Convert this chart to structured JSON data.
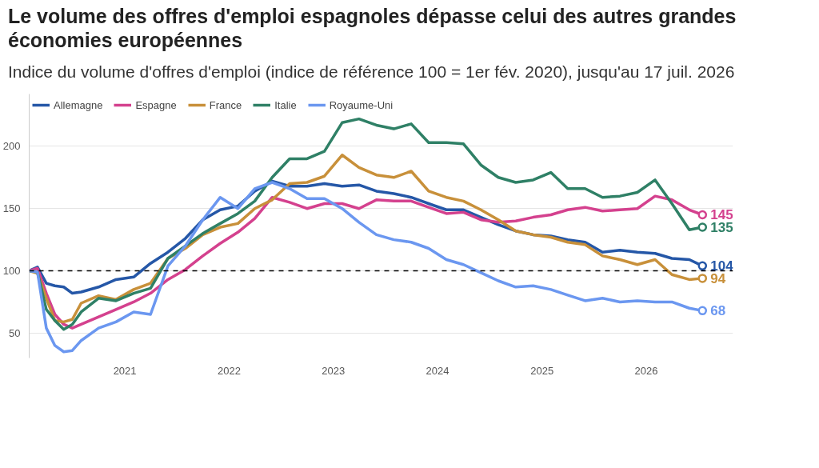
{
  "chart_data": {
    "type": "line",
    "title": "Le volume des offres d'emploi espagnoles dépasse celui des autres grandes économies européennes",
    "subtitle": "Indice du volume d'offres d'emploi (indice de référence 100 = 1er fév. 2020), jusqu'au 17 juil. 2026",
    "x": [
      "2020-02",
      "2020-03",
      "2020-04",
      "2020-05",
      "2020-06",
      "2020-07",
      "2020-08",
      "2020-10",
      "2020-12",
      "2021-02",
      "2021-04",
      "2021-06",
      "2021-08",
      "2021-10",
      "2021-12",
      "2022-02",
      "2022-04",
      "2022-06",
      "2022-08",
      "2022-10",
      "2022-12",
      "2023-02",
      "2023-04",
      "2023-06",
      "2023-08",
      "2023-10",
      "2023-12",
      "2024-02",
      "2024-04",
      "2024-06",
      "2024-08",
      "2024-10",
      "2024-12",
      "2025-02",
      "2025-04",
      "2025-06",
      "2025-08",
      "2025-10",
      "2025-12",
      "2026-02",
      "2026-04",
      "2026-06",
      "2026-07-17"
    ],
    "series": [
      {
        "name": "Allemagne",
        "color": "#2557a7",
        "values": [
          100,
          103,
          90,
          88,
          87,
          82,
          83,
          87,
          93,
          95,
          106,
          115,
          126,
          141,
          149,
          152,
          164,
          172,
          168,
          168,
          170,
          168,
          169,
          164,
          162,
          159,
          154,
          149,
          149,
          143,
          137,
          132,
          129,
          128,
          125,
          123,
          115,
          116.5,
          115,
          114,
          110,
          109,
          104
        ],
        "value_labels": [
          null,
          null,
          null,
          null,
          null,
          null,
          null,
          null,
          null,
          null,
          null,
          null,
          null,
          null,
          null,
          null,
          null,
          null,
          null,
          null,
          null,
          null,
          null,
          null,
          null,
          null,
          null,
          null,
          null,
          null,
          null,
          null,
          null,
          null,
          null,
          null,
          null,
          null,
          null,
          null,
          null,
          null,
          "104"
        ]
      },
      {
        "name": "Espagne",
        "color": "#d4418e",
        "values": [
          100,
          102,
          82,
          65,
          57,
          54,
          57,
          63,
          69,
          75,
          82,
          93,
          101,
          112,
          122,
          131,
          142,
          159,
          155,
          150,
          154,
          154,
          150,
          157,
          156,
          156,
          151,
          146,
          147,
          141,
          139,
          140,
          143,
          145,
          149,
          151,
          148,
          149,
          150,
          160,
          157,
          149,
          145
        ],
        "value_labels": [
          null,
          null,
          null,
          null,
          null,
          null,
          null,
          null,
          null,
          null,
          null,
          null,
          null,
          null,
          null,
          null,
          null,
          null,
          null,
          null,
          null,
          null,
          null,
          null,
          null,
          null,
          null,
          null,
          null,
          null,
          null,
          null,
          null,
          null,
          null,
          null,
          null,
          null,
          null,
          null,
          null,
          null,
          "145"
        ]
      },
      {
        "name": "France",
        "color": "#c8903a",
        "values": [
          100,
          98,
          78,
          60,
          59,
          61,
          74,
          80,
          77,
          85,
          90,
          110,
          118,
          129,
          135,
          138,
          150,
          157,
          170,
          171,
          176,
          193,
          183,
          177,
          175,
          180,
          164,
          159,
          156,
          149,
          141,
          132,
          129,
          127,
          123,
          121,
          112,
          109,
          105,
          109,
          97,
          93,
          94
        ],
        "value_labels": [
          null,
          null,
          null,
          null,
          null,
          null,
          null,
          null,
          null,
          null,
          null,
          null,
          null,
          null,
          null,
          null,
          null,
          null,
          null,
          null,
          null,
          null,
          null,
          null,
          null,
          null,
          null,
          null,
          null,
          null,
          null,
          null,
          null,
          null,
          null,
          null,
          null,
          null,
          null,
          null,
          null,
          null,
          "94"
        ]
      },
      {
        "name": "Italie",
        "color": "#2f8066",
        "values": [
          100,
          99,
          69,
          60,
          53,
          57,
          67,
          78,
          76,
          82,
          86,
          110,
          120,
          130,
          138,
          146,
          156,
          175,
          190,
          190,
          196,
          219,
          222,
          217,
          214,
          218,
          203,
          203,
          202,
          185,
          175,
          171,
          173,
          179,
          166,
          166,
          159,
          160,
          163,
          173,
          154,
          133,
          135
        ],
        "value_labels": [
          null,
          null,
          null,
          null,
          null,
          null,
          null,
          null,
          null,
          null,
          null,
          null,
          null,
          null,
          null,
          null,
          null,
          null,
          null,
          null,
          null,
          null,
          null,
          null,
          null,
          null,
          null,
          null,
          null,
          null,
          null,
          null,
          null,
          null,
          null,
          null,
          null,
          null,
          null,
          null,
          null,
          null,
          "135"
        ]
      },
      {
        "name": "Royaume-Uni",
        "color": "#6b97f0",
        "values": [
          100,
          99,
          54,
          40,
          35,
          36,
          44,
          54,
          59,
          67,
          65,
          104,
          120,
          141,
          159,
          150,
          166,
          171,
          166,
          158,
          158,
          150,
          139,
          129,
          125,
          123,
          118,
          109,
          105,
          98.5,
          92,
          87,
          88,
          85,
          80.5,
          76,
          78,
          75,
          76,
          75,
          75,
          70,
          68
        ],
        "value_labels": [
          null,
          null,
          null,
          null,
          null,
          null,
          null,
          null,
          null,
          null,
          null,
          null,
          null,
          null,
          null,
          null,
          null,
          null,
          null,
          null,
          null,
          null,
          null,
          null,
          null,
          null,
          null,
          null,
          null,
          null,
          null,
          null,
          null,
          null,
          null,
          null,
          null,
          null,
          null,
          null,
          null,
          null,
          "68"
        ]
      }
    ],
    "xlim": [
      "2020-02",
      "2026-11"
    ],
    "xticks": [
      "2021",
      "2022",
      "2023",
      "2024",
      "2025",
      "2026"
    ],
    "ylim": [
      30,
      242
    ],
    "yticks": [
      50,
      100,
      150,
      200
    ],
    "ref_lines": [
      {
        "axis": "y",
        "value": 100,
        "label": null,
        "color": "#000000",
        "line_style": "dashed"
      }
    ],
    "grid": "y",
    "legend": "top left"
  }
}
